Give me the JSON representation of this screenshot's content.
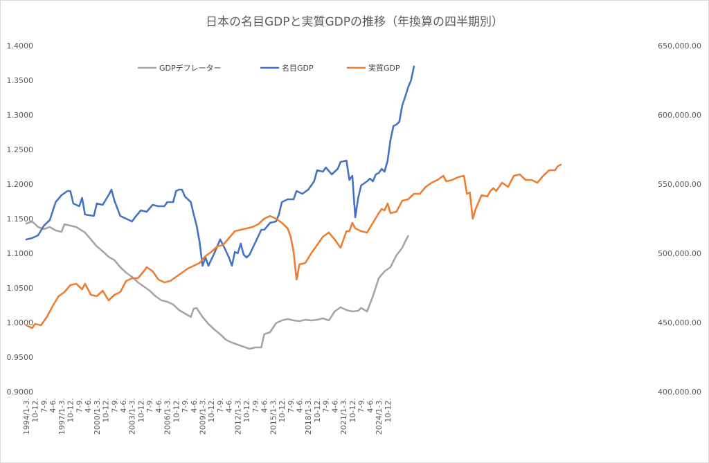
{
  "chart_data": {
    "type": "line",
    "title": "日本の名目GDPと実質GDPの推移（年換算の四半期別）",
    "legend_position": "top",
    "grid": false,
    "y_left": {
      "range": [
        0.9,
        1.4
      ],
      "ticks": [
        "0.9000",
        "0.9500",
        "1.0000",
        "1.0500",
        "1.1000",
        "1.1500",
        "1.2000",
        "1.2500",
        "1.3000",
        "1.3500",
        "1.4000"
      ],
      "series": [
        "GDPデフレーター"
      ]
    },
    "y_right": {
      "range": [
        400000,
        650000
      ],
      "ticks": [
        "400,000.00",
        "450,000.00",
        "500,000.00",
        "550,000.00",
        "600,000.00",
        "650,000.00"
      ],
      "series": [
        "名目GDP",
        "実質GDP"
      ]
    },
    "x_labels": [
      "1994/1-3.",
      "10-12.",
      "7-9.",
      "4-6.",
      "1997/1-3.",
      "10-12.",
      "7-9.",
      "4-6.",
      "2000/1-3.",
      "10-12.",
      "7-9.",
      "4-6.",
      "2003/1-3.",
      "10-12.",
      "7-9.",
      "4-6.",
      "2006/1-3.",
      "10-12.",
      "7-9.",
      "4-6.",
      "2009/1-3.",
      "10-12.",
      "7-9.",
      "4-6.",
      "2012/1-3.",
      "10-12.",
      "7-9.",
      "4-6.",
      "2015/1-3.",
      "10-12.",
      "7-9.",
      "4-6.",
      "2018/1-3.",
      "10-12.",
      "7-9.",
      "4-6.",
      "2021/1-3.",
      "10-12.",
      "7-9.",
      "4-6.",
      "2024/1-3.",
      "10-12."
    ],
    "series": [
      {
        "name": "GDPデフレーター",
        "axis": "left",
        "color": "#a5a5a5",
        "keyframes": [
          [
            0,
            1.143
          ],
          [
            2,
            1.146
          ],
          [
            4,
            1.138
          ],
          [
            6,
            1.135
          ],
          [
            8,
            1.138
          ],
          [
            10,
            1.133
          ],
          [
            12,
            1.131
          ],
          [
            13,
            1.142
          ],
          [
            15,
            1.14
          ],
          [
            17,
            1.138
          ],
          [
            20,
            1.13
          ],
          [
            22,
            1.12
          ],
          [
            24,
            1.11
          ],
          [
            26,
            1.103
          ],
          [
            28,
            1.095
          ],
          [
            30,
            1.09
          ],
          [
            32,
            1.08
          ],
          [
            34,
            1.072
          ],
          [
            36,
            1.066
          ],
          [
            38,
            1.058
          ],
          [
            40,
            1.052
          ],
          [
            42,
            1.046
          ],
          [
            44,
            1.038
          ],
          [
            46,
            1.032
          ],
          [
            48,
            1.03
          ],
          [
            50,
            1.026
          ],
          [
            52,
            1.018
          ],
          [
            54,
            1.013
          ],
          [
            56,
            1.008
          ],
          [
            57,
            1.02
          ],
          [
            58,
            1.021
          ],
          [
            60,
            1.008
          ],
          [
            62,
            0.998
          ],
          [
            64,
            0.99
          ],
          [
            66,
            0.983
          ],
          [
            68,
            0.975
          ],
          [
            70,
            0.971
          ],
          [
            72,
            0.968
          ],
          [
            74,
            0.965
          ],
          [
            76,
            0.962
          ],
          [
            78,
            0.964
          ],
          [
            80,
            0.964
          ],
          [
            81,
            0.983
          ],
          [
            83,
            0.986
          ],
          [
            85,
            0.999
          ],
          [
            87,
            1.003
          ],
          [
            89,
            1.005
          ],
          [
            91,
            1.003
          ],
          [
            93,
            1.002
          ],
          [
            95,
            1.004
          ],
          [
            97,
            1.003
          ],
          [
            99,
            1.004
          ],
          [
            101,
            1.006
          ],
          [
            103,
            1.003
          ],
          [
            105,
            1.016
          ],
          [
            107,
            1.022
          ],
          [
            109,
            1.018
          ],
          [
            111,
            1.016
          ],
          [
            113,
            1.017
          ],
          [
            114,
            1.021
          ],
          [
            116,
            1.016
          ],
          [
            118,
            1.038
          ],
          [
            120,
            1.064
          ],
          [
            122,
            1.074
          ],
          [
            124,
            1.08
          ],
          [
            126,
            1.097
          ],
          [
            128,
            1.108
          ],
          [
            129,
            1.117
          ],
          [
            130,
            1.125
          ]
        ]
      },
      {
        "name": "名目GDP",
        "axis": "right",
        "color": "#4472c4",
        "keyframes": [
          [
            0,
            510000
          ],
          [
            2,
            511000
          ],
          [
            4,
            513000
          ],
          [
            6,
            520000
          ],
          [
            8,
            524000
          ],
          [
            10,
            537000
          ],
          [
            12,
            542000
          ],
          [
            14,
            545000
          ],
          [
            15,
            545000
          ],
          [
            16,
            536000
          ],
          [
            18,
            534000
          ],
          [
            19,
            540000
          ],
          [
            20,
            528000
          ],
          [
            23,
            527000
          ],
          [
            24,
            536000
          ],
          [
            26,
            535000
          ],
          [
            28,
            542000
          ],
          [
            29,
            546000
          ],
          [
            30,
            538000
          ],
          [
            32,
            527000
          ],
          [
            34,
            525000
          ],
          [
            36,
            523000
          ],
          [
            37,
            526000
          ],
          [
            39,
            531000
          ],
          [
            41,
            530000
          ],
          [
            43,
            535000
          ],
          [
            45,
            534000
          ],
          [
            47,
            534000
          ],
          [
            48,
            537000
          ],
          [
            50,
            537000
          ],
          [
            51,
            545000
          ],
          [
            52,
            546000
          ],
          [
            53,
            546000
          ],
          [
            54,
            541000
          ],
          [
            56,
            537000
          ],
          [
            57,
            528000
          ],
          [
            58,
            520000
          ],
          [
            59,
            508000
          ],
          [
            60,
            491000
          ],
          [
            61,
            497000
          ],
          [
            62,
            491000
          ],
          [
            64,
            500000
          ],
          [
            65,
            505000
          ],
          [
            66,
            510000
          ],
          [
            67,
            506000
          ],
          [
            69,
            497000
          ],
          [
            70,
            491000
          ],
          [
            71,
            501000
          ],
          [
            72,
            500000
          ],
          [
            73,
            507000
          ],
          [
            74,
            499000
          ],
          [
            75,
            497000
          ],
          [
            76,
            499000
          ],
          [
            78,
            508000
          ],
          [
            80,
            517000
          ],
          [
            81,
            517000
          ],
          [
            83,
            522000
          ],
          [
            85,
            523000
          ],
          [
            86,
            528000
          ],
          [
            87,
            537000
          ],
          [
            89,
            539000
          ],
          [
            91,
            539000
          ],
          [
            92,
            545000
          ],
          [
            94,
            543000
          ],
          [
            96,
            546000
          ],
          [
            98,
            552000
          ],
          [
            99,
            560000
          ],
          [
            101,
            559000
          ],
          [
            102,
            562000
          ],
          [
            104,
            557000
          ],
          [
            106,
            561000
          ],
          [
            107,
            566000
          ],
          [
            109,
            567000
          ],
          [
            110,
            553000
          ],
          [
            111,
            556000
          ],
          [
            112,
            526000
          ],
          [
            113,
            540000
          ],
          [
            114,
            549000
          ],
          [
            116,
            552000
          ],
          [
            117,
            554000
          ],
          [
            118,
            552000
          ],
          [
            119,
            557000
          ],
          [
            120,
            558000
          ],
          [
            121,
            561000
          ],
          [
            122,
            559000
          ],
          [
            123,
            567000
          ],
          [
            124,
            582000
          ],
          [
            125,
            592000
          ],
          [
            126,
            593000
          ],
          [
            127,
            595000
          ],
          [
            128,
            607000
          ],
          [
            129,
            613000
          ],
          [
            130,
            620000
          ],
          [
            131,
            625000
          ],
          [
            132,
            635000
          ]
        ]
      },
      {
        "name": "実質GDP",
        "axis": "right",
        "color": "#ed7d31",
        "keyframes": [
          [
            0,
            448000
          ],
          [
            2,
            446000
          ],
          [
            3,
            449000
          ],
          [
            5,
            448000
          ],
          [
            7,
            454000
          ],
          [
            9,
            462000
          ],
          [
            11,
            469000
          ],
          [
            13,
            472000
          ],
          [
            15,
            477000
          ],
          [
            17,
            478000
          ],
          [
            19,
            474000
          ],
          [
            20,
            478000
          ],
          [
            22,
            470000
          ],
          [
            24,
            469000
          ],
          [
            26,
            473000
          ],
          [
            28,
            466000
          ],
          [
            30,
            470000
          ],
          [
            32,
            472000
          ],
          [
            34,
            480000
          ],
          [
            36,
            482000
          ],
          [
            38,
            482000
          ],
          [
            40,
            487000
          ],
          [
            41,
            490000
          ],
          [
            43,
            487000
          ],
          [
            45,
            481000
          ],
          [
            47,
            479000
          ],
          [
            49,
            480000
          ],
          [
            51,
            483000
          ],
          [
            53,
            486000
          ],
          [
            55,
            489000
          ],
          [
            57,
            491000
          ],
          [
            59,
            493000
          ],
          [
            61,
            498000
          ],
          [
            63,
            501000
          ],
          [
            65,
            505000
          ],
          [
            67,
            506000
          ],
          [
            69,
            511000
          ],
          [
            71,
            516000
          ],
          [
            73,
            517000
          ],
          [
            75,
            518000
          ],
          [
            77,
            519000
          ],
          [
            79,
            521000
          ],
          [
            81,
            525000
          ],
          [
            83,
            527000
          ],
          [
            85,
            525000
          ],
          [
            87,
            522000
          ],
          [
            89,
            518000
          ],
          [
            90,
            512000
          ],
          [
            91,
            501000
          ],
          [
            92,
            481000
          ],
          [
            93,
            492000
          ],
          [
            95,
            493000
          ],
          [
            97,
            500000
          ],
          [
            99,
            506000
          ],
          [
            101,
            512000
          ],
          [
            103,
            515000
          ],
          [
            105,
            510000
          ],
          [
            107,
            504000
          ],
          [
            109,
            516000
          ],
          [
            110,
            516000
          ],
          [
            111,
            522000
          ],
          [
            112,
            518000
          ],
          [
            114,
            516000
          ],
          [
            116,
            515000
          ],
          [
            118,
            522000
          ],
          [
            120,
            529000
          ],
          [
            121,
            532000
          ],
          [
            122,
            531000
          ],
          [
            123,
            536000
          ],
          [
            124,
            529000
          ],
          [
            126,
            530000
          ],
          [
            128,
            538000
          ],
          [
            130,
            539000
          ],
          [
            132,
            543000
          ],
          [
            134,
            543000
          ],
          [
            136,
            548000
          ],
          [
            138,
            551000
          ],
          [
            140,
            553000
          ],
          [
            142,
            556000
          ],
          [
            143,
            552000
          ],
          [
            145,
            553000
          ],
          [
            147,
            555000
          ],
          [
            149,
            556000
          ],
          [
            150,
            543000
          ],
          [
            151,
            544000
          ],
          [
            152,
            525000
          ],
          [
            153,
            532000
          ],
          [
            155,
            542000
          ],
          [
            157,
            541000
          ],
          [
            158,
            545000
          ],
          [
            159,
            547000
          ],
          [
            160,
            545000
          ],
          [
            162,
            551000
          ],
          [
            164,
            548000
          ],
          [
            166,
            556000
          ],
          [
            168,
            557000
          ],
          [
            170,
            553000
          ],
          [
            172,
            553000
          ],
          [
            174,
            551000
          ],
          [
            176,
            556000
          ],
          [
            178,
            560000
          ],
          [
            180,
            560000
          ],
          [
            181,
            563000
          ],
          [
            182,
            564000
          ]
        ]
      }
    ]
  }
}
